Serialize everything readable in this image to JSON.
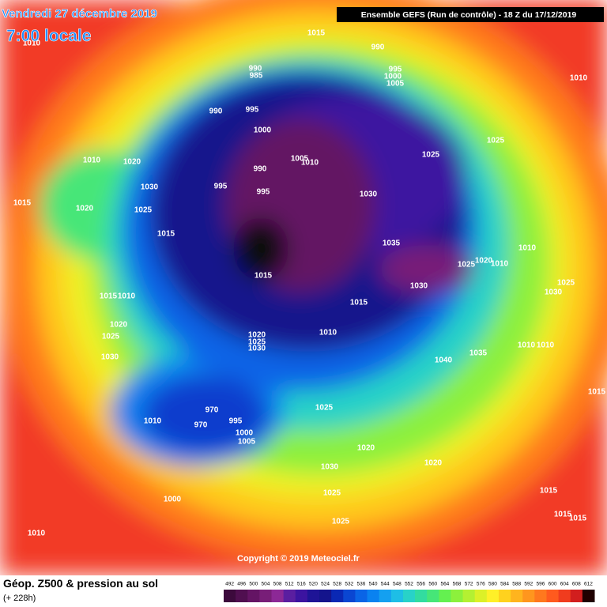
{
  "header": {
    "date": "Vendredi 27 décembre 2019",
    "time": "7:00 locale",
    "run": "Ensemble GEFS  (Run de contrôle)  -  18 Z du 17/12/2019"
  },
  "copyright": "Copyright © 2019 Meteociel.fr",
  "footer": {
    "title": "Géop. Z500 & pression au sol",
    "lead": "(+ 228h)"
  },
  "pressure_labels": [
    "1015",
    "990",
    "995",
    "1000",
    "1005",
    "1010",
    "1010",
    "990",
    "985",
    "995",
    "990",
    "1000",
    "1025",
    "1010",
    "1020",
    "1025",
    "1005",
    "1010",
    "990",
    "995",
    "995",
    "1030",
    "1030",
    "1015",
    "1020",
    "1025",
    "1015",
    "1035",
    "1010",
    "1025",
    "1020",
    "1010",
    "1015",
    "1030",
    "1025",
    "1030",
    "1015",
    "1010",
    "1015",
    "1020",
    "1010",
    "1020",
    "1025",
    "1030",
    "1025",
    "1030",
    "1035",
    "1040",
    "1010",
    "1010",
    "1015",
    "1025",
    "970",
    "970",
    "995",
    "1010",
    "1000",
    "1005",
    "1020",
    "1020",
    "1030",
    "1025",
    "1000",
    "1010",
    "1025",
    "1015",
    "1015",
    "1015"
  ],
  "color_scale": {
    "values": [
      492,
      496,
      500,
      504,
      508,
      512,
      516,
      520,
      524,
      528,
      532,
      536,
      540,
      544,
      548,
      552,
      556,
      560,
      564,
      568,
      572,
      576,
      580,
      584,
      588,
      592,
      596,
      600,
      604,
      608,
      612
    ],
    "colors": [
      "#3c0a3c",
      "#500f50",
      "#641464",
      "#781e78",
      "#8c2896",
      "#5a1ea0",
      "#3c14a0",
      "#1e1496",
      "#14148c",
      "#0a28b4",
      "#0a46d2",
      "#0a64e6",
      "#0a82f0",
      "#14a0f0",
      "#1ebee6",
      "#28d2c8",
      "#32dca0",
      "#46e678",
      "#64f050",
      "#8cf03c",
      "#b4f032",
      "#dcf028",
      "#fff028",
      "#ffd21e",
      "#ffb41e",
      "#ff961e",
      "#ff781e",
      "#ff5a1e",
      "#f03c1e",
      "#d21e1e",
      "#200000"
    ]
  }
}
